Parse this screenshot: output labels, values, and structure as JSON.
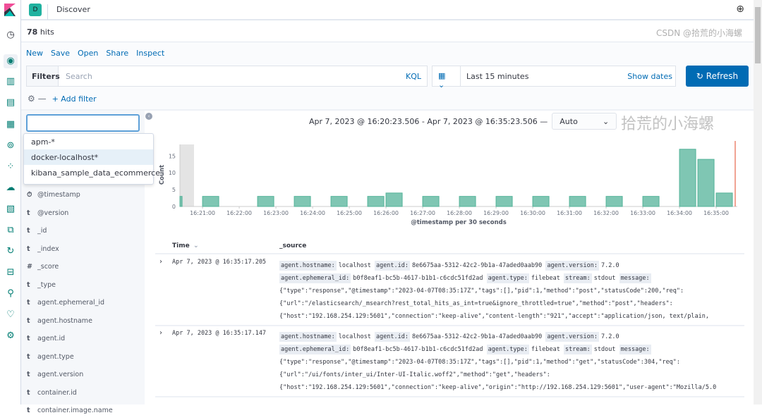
{
  "header": {
    "space_initial": "D",
    "title": "Discover"
  },
  "hits": {
    "count": "78",
    "label": "hits"
  },
  "menu": [
    "New",
    "Save",
    "Open",
    "Share",
    "Inspect"
  ],
  "query": {
    "filters_label": "Filters",
    "search_placeholder": "Search",
    "language": "KQL"
  },
  "date": {
    "range": "Last 15 minutes",
    "show_dates": "Show dates",
    "refresh": "Refresh"
  },
  "add_filter": "+ Add filter",
  "index_pattern": {
    "value": "",
    "options": [
      "apm-*",
      "docker-localhost*",
      "kibana_sample_data_ecommerce"
    ],
    "highlighted": "docker-localhost*"
  },
  "fields": [
    {
      "type": "⏱",
      "name": "@timestamp"
    },
    {
      "type": "t",
      "name": "@version"
    },
    {
      "type": "t",
      "name": "_id"
    },
    {
      "type": "t",
      "name": "_index"
    },
    {
      "type": "#",
      "name": "_score"
    },
    {
      "type": "t",
      "name": "_type"
    },
    {
      "type": "t",
      "name": "agent.ephemeral_id"
    },
    {
      "type": "t",
      "name": "agent.hostname"
    },
    {
      "type": "t",
      "name": "agent.id"
    },
    {
      "type": "t",
      "name": "agent.type"
    },
    {
      "type": "t",
      "name": "agent.version"
    },
    {
      "type": "t",
      "name": "container.id"
    },
    {
      "type": "t",
      "name": "container.image.name"
    }
  ],
  "time_range_text": "Apr 7, 2023 @ 16:20:23.506 - Apr 7, 2023 @ 16:35:23.506 —",
  "interval": "Auto",
  "chart_data": {
    "type": "bar",
    "xlabel": "@timestamp per 30 seconds",
    "ylabel": "Count",
    "ylim": [
      0,
      18
    ],
    "yticks": [
      0,
      5,
      10,
      15
    ],
    "xticks": [
      "16:21:00",
      "16:22:00",
      "16:23:00",
      "16:24:00",
      "16:25:00",
      "16:26:00",
      "16:27:00",
      "16:28:00",
      "16:29:00",
      "16:30:00",
      "16:31:00",
      "16:32:00",
      "16:33:00",
      "16:34:00",
      "16:35:00"
    ],
    "bars": [
      {
        "x": "16:20:00",
        "y": 3
      },
      {
        "x": "16:21:00",
        "y": 3
      },
      {
        "x": "16:22:30",
        "y": 3
      },
      {
        "x": "16:23:30",
        "y": 3
      },
      {
        "x": "16:24:30",
        "y": 3
      },
      {
        "x": "16:25:30",
        "y": 3
      },
      {
        "x": "16:26:00",
        "y": 4
      },
      {
        "x": "16:27:00",
        "y": 3
      },
      {
        "x": "16:28:00",
        "y": 3
      },
      {
        "x": "16:29:00",
        "y": 3
      },
      {
        "x": "16:30:00",
        "y": 3
      },
      {
        "x": "16:31:00",
        "y": 3
      },
      {
        "x": "16:32:00",
        "y": 3
      },
      {
        "x": "16:33:00",
        "y": 3
      },
      {
        "x": "16:34:00",
        "y": 17
      },
      {
        "x": "16:34:30",
        "y": 14
      },
      {
        "x": "16:35:00",
        "y": 4
      }
    ],
    "color": "#54b399"
  },
  "table": {
    "columns": [
      "Time",
      "_source"
    ],
    "rows": [
      {
        "time": "Apr 7, 2023 @ 16:35:17.205",
        "lines": [
          [
            [
              "agent.hostname:",
              "localhost"
            ],
            [
              "agent.id:",
              "8e6675aa-5312-42c2-9b1a-47aded0aab90"
            ],
            [
              "agent.version:",
              "7.2.0"
            ]
          ],
          [
            [
              "agent.ephemeral_id:",
              "b0f8eaf1-bc5b-4617-b1b1-c6cdc51fd2ad"
            ],
            [
              "agent.type:",
              "filebeat"
            ],
            [
              "stream:",
              "stdout"
            ],
            [
              "message:",
              ""
            ]
          ],
          [
            [
              "",
              "{\"type\":\"response\",\"@timestamp\":\"2023-04-07T08:35:17Z\",\"tags\":[],\"pid\":1,\"method\":\"post\",\"statusCode\":200,\"req\":"
            ]
          ],
          [
            [
              "",
              "{\"url\":\"/elasticsearch/_msearch?rest_total_hits_as_int=true&ignore_throttled=true\",\"method\":\"post\",\"headers\":"
            ]
          ],
          [
            [
              "",
              "{\"host\":\"192.168.254.129:5601\",\"connection\":\"keep-alive\",\"content-length\":\"921\",\"accept\":\"application/json, text/plain,"
            ]
          ]
        ]
      },
      {
        "time": "Apr 7, 2023 @ 16:35:17.147",
        "lines": [
          [
            [
              "agent.hostname:",
              "localhost"
            ],
            [
              "agent.id:",
              "8e6675aa-5312-42c2-9b1a-47aded0aab90"
            ],
            [
              "agent.version:",
              "7.2.0"
            ]
          ],
          [
            [
              "agent.ephemeral_id:",
              "b0f8eaf1-bc5b-4617-b1b1-c6cdc51fd2ad"
            ],
            [
              "agent.type:",
              "filebeat"
            ],
            [
              "stream:",
              "stdout"
            ],
            [
              "message:",
              ""
            ]
          ],
          [
            [
              "",
              "{\"type\":\"response\",\"@timestamp\":\"2023-04-07T08:35:17Z\",\"tags\":[],\"pid\":1,\"method\":\"get\",\"statusCode\":304,\"req\":"
            ]
          ],
          [
            [
              "",
              "{\"url\":\"/ui/fonts/inter_ui/Inter-UI-Italic.woff2\",\"method\":\"get\",\"headers\":"
            ]
          ],
          [
            [
              "",
              "{\"host\":\"192.168.254.129:5601\",\"connection\":\"keep-alive\",\"origin\":\"http://192.168.254.129:5601\",\"user-agent\":\"Mozilla/5.0"
            ]
          ]
        ]
      }
    ]
  },
  "watermark": {
    "main": "拾荒的小海螺",
    "csdn": "CSDN @拾荒的小海螺"
  },
  "colors": {
    "accent": "#006bb4",
    "bar": "#54b399",
    "logo_pink": "#f04e98",
    "logo_teal": "#00bfb3"
  }
}
